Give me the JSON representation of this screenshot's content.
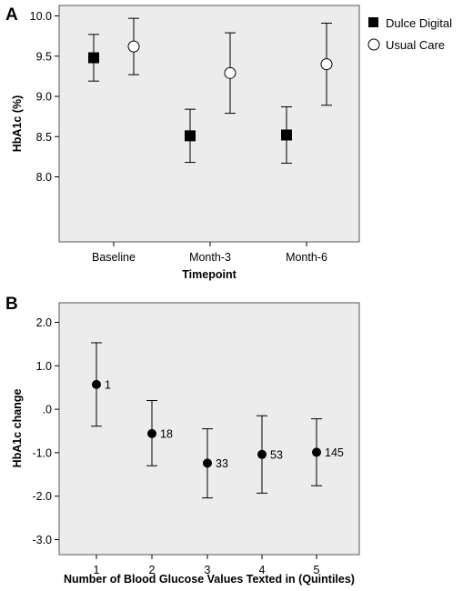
{
  "chart_data": [
    {
      "panel": "A",
      "type": "scatter",
      "xlabel": "Timepoint",
      "ylabel": "HbA1c (%)",
      "categories": [
        "Baseline",
        "Month-3",
        "Month-6"
      ],
      "ylim": [
        7.8,
        10.1
      ],
      "yticks": [
        "8.0",
        "8.5",
        "9.0",
        "9.5",
        "10.0"
      ],
      "legend": "right",
      "series": [
        {
          "name": "Dulce Digital",
          "marker": "filled-square",
          "values": [
            9.48,
            8.51,
            8.52
          ],
          "lower": [
            9.19,
            8.18,
            8.17
          ],
          "upper": [
            9.77,
            8.84,
            8.87
          ]
        },
        {
          "name": "Usual Care",
          "marker": "open-circle",
          "values": [
            9.62,
            9.29,
            9.4
          ],
          "lower": [
            9.27,
            8.79,
            8.89
          ],
          "upper": [
            9.97,
            9.79,
            9.91
          ]
        }
      ]
    },
    {
      "panel": "B",
      "type": "scatter",
      "xlabel": "Number of Blood Glucose Values Texted in (Quintiles)",
      "ylabel": "HbA1c change",
      "categories": [
        "1",
        "2",
        "3",
        "4",
        "5"
      ],
      "ylim": [
        -3.2,
        2.3
      ],
      "yticks": [
        "-3.0",
        "-2.0",
        "-1.0",
        ".0",
        "1.0",
        "2.0"
      ],
      "series": [
        {
          "marker": "filled-circle",
          "values": [
            0.57,
            -0.56,
            -1.24,
            -1.04,
            -0.99
          ],
          "lower": [
            -0.39,
            -1.3,
            -2.04,
            -1.93,
            -1.76
          ],
          "upper": [
            1.53,
            0.2,
            -0.45,
            -0.15,
            -0.22
          ],
          "labels": [
            "1",
            "18",
            "33",
            "53",
            "145"
          ]
        }
      ]
    }
  ]
}
